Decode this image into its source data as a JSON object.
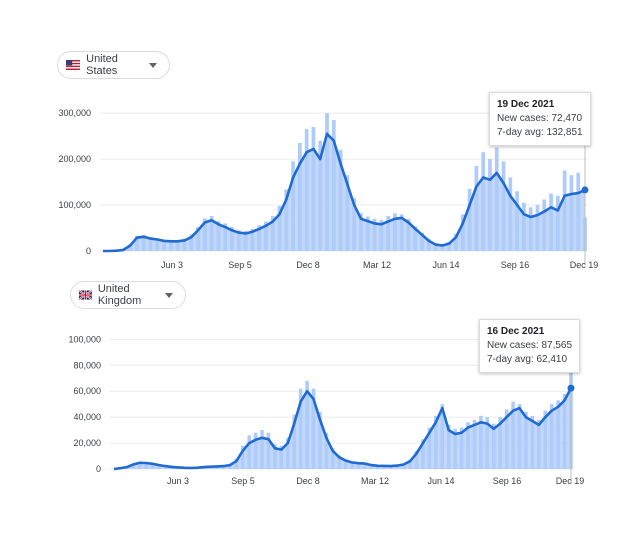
{
  "colors": {
    "line": "#1f6bd2",
    "bars": "#aecbfa",
    "grid": "#ebebeb",
    "cursor": "#bdbdbd"
  },
  "icons": {
    "chip_caret": "caret-down-icon",
    "us_flag": "us-flag-icon",
    "uk_flag": "uk-flag-icon"
  },
  "chart_data": [
    {
      "type": "area",
      "country": "United States",
      "x_tick_labels": [
        "Jun 3",
        "Sep 5",
        "Dec 8",
        "Mar 12",
        "Jun 14",
        "Sep 16",
        "Dec 19"
      ],
      "y_tick_labels": [
        "300,000",
        "200,000",
        "100,000",
        "0"
      ],
      "y_ticks": [
        0,
        100000,
        200000,
        300000
      ],
      "ylim": [
        0,
        310000
      ],
      "grid": true,
      "legend": "none",
      "tooltip": {
        "date": "19 Dec 2021",
        "new_cases": "New cases: 72,470",
        "avg": "7-day avg: 132,851"
      },
      "series": [
        {
          "name": "7-day avg",
          "kind": "line",
          "values": [
            0,
            0,
            600,
            2500,
            12000,
            29000,
            31000,
            27000,
            25000,
            22000,
            21000,
            21000,
            23000,
            30000,
            45000,
            62000,
            67000,
            58000,
            52000,
            45000,
            40000,
            38000,
            42000,
            48000,
            55000,
            64000,
            80000,
            112000,
            160000,
            190000,
            215000,
            222000,
            200000,
            255000,
            240000,
            190000,
            145000,
            100000,
            70000,
            65000,
            60000,
            58000,
            64000,
            70000,
            72000,
            62000,
            48000,
            35000,
            22000,
            14000,
            12000,
            16000,
            30000,
            60000,
            100000,
            140000,
            160000,
            155000,
            170000,
            148000,
            120000,
            100000,
            80000,
            74000,
            78000,
            86000,
            95000,
            88000,
            120000,
            124000,
            126000,
            132851
          ]
        },
        {
          "name": "New cases",
          "kind": "bars",
          "values": [
            0,
            0,
            800,
            3000,
            14000,
            33000,
            35000,
            30000,
            28000,
            25000,
            24000,
            24000,
            27000,
            36000,
            52000,
            71000,
            76000,
            65000,
            60000,
            52000,
            45000,
            44000,
            48000,
            56000,
            64000,
            76000,
            98000,
            134000,
            195000,
            235000,
            265000,
            270000,
            240000,
            300000,
            285000,
            220000,
            165000,
            115000,
            82000,
            75000,
            70000,
            68000,
            76000,
            82000,
            80000,
            70000,
            54000,
            40000,
            26000,
            17000,
            15000,
            20000,
            38000,
            80000,
            135000,
            185000,
            215000,
            200000,
            225000,
            195000,
            160000,
            130000,
            105000,
            95000,
            100000,
            112000,
            125000,
            120000,
            175000,
            165000,
            170000,
            72470
          ]
        }
      ]
    },
    {
      "type": "area",
      "country": "United Kingdom",
      "x_tick_labels": [
        "Jun 3",
        "Sep 5",
        "Dec 8",
        "Mar 12",
        "Jun 14",
        "Sep 16",
        "Dec 19"
      ],
      "y_tick_labels": [
        "100,000",
        "80,000",
        "60,000",
        "40,000",
        "20,000",
        "0"
      ],
      "y_ticks": [
        0,
        20000,
        40000,
        60000,
        80000,
        100000
      ],
      "ylim": [
        0,
        103000
      ],
      "grid": true,
      "legend": "none",
      "tooltip": {
        "date": "16 Dec 2021",
        "new_cases": "New cases: 87,565",
        "avg": "7-day avg: 62,410"
      },
      "series": [
        {
          "name": "7-day avg",
          "kind": "line",
          "values": [
            0,
            600,
            1500,
            3500,
            4800,
            4600,
            4000,
            3000,
            2200,
            1600,
            1200,
            900,
            800,
            1000,
            1500,
            1800,
            2000,
            2200,
            3000,
            6000,
            14000,
            20000,
            22500,
            24000,
            23000,
            16000,
            15000,
            20000,
            35000,
            52000,
            60000,
            54000,
            38000,
            24000,
            14000,
            9000,
            6500,
            5000,
            4500,
            4200,
            3000,
            2500,
            2400,
            2200,
            2600,
            3500,
            6000,
            12000,
            20000,
            28000,
            36000,
            47000,
            30000,
            27000,
            28000,
            32000,
            34000,
            36000,
            35000,
            31000,
            35000,
            40000,
            45000,
            47000,
            40000,
            37000,
            34000,
            40000,
            45000,
            48000,
            53000,
            62410
          ]
        },
        {
          "name": "New cases",
          "kind": "bars",
          "values": [
            0,
            700,
            1800,
            4000,
            5300,
            5200,
            4500,
            3300,
            2500,
            1800,
            1400,
            1000,
            900,
            1100,
            1700,
            2000,
            2200,
            2500,
            3500,
            8000,
            18000,
            26000,
            28000,
            30000,
            28000,
            19000,
            18000,
            24000,
            42000,
            62000,
            68000,
            62000,
            44000,
            28000,
            16000,
            10500,
            7500,
            5800,
            5200,
            4800,
            3500,
            2900,
            2700,
            2500,
            3000,
            4000,
            7000,
            14000,
            23000,
            32000,
            41000,
            50000,
            34000,
            31000,
            32000,
            36000,
            38000,
            41000,
            40000,
            35000,
            40000,
            46000,
            52000,
            50000,
            44000,
            41000,
            38000,
            45000,
            50000,
            53000,
            58000,
            87565
          ]
        }
      ]
    }
  ]
}
